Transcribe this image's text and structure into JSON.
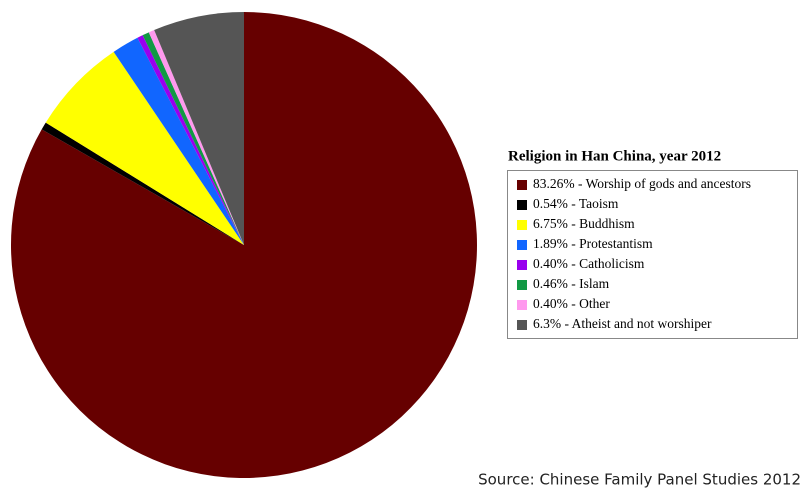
{
  "chart_data": {
    "type": "pie",
    "title": "Religion in Han China, year 2012",
    "categories": [
      "83.26% - Worship of gods and ancestors",
      "0.54% - Taoism",
      "6.75% - Buddhism",
      "1.89% - Protestantism",
      "0.40% - Catholicism",
      "0.46% - Islam",
      "0.40% - Other",
      "6.3% - Atheist and not worshiper"
    ],
    "values": [
      83.26,
      0.54,
      6.75,
      1.89,
      0.4,
      0.46,
      0.4,
      6.3
    ],
    "colors": [
      "#660000",
      "#000000",
      "#ffff00",
      "#1166ff",
      "#9900ee",
      "#119944",
      "#ff99ee",
      "#555555"
    ],
    "source": "Source: Chinese Family Panel Studies 2012"
  }
}
